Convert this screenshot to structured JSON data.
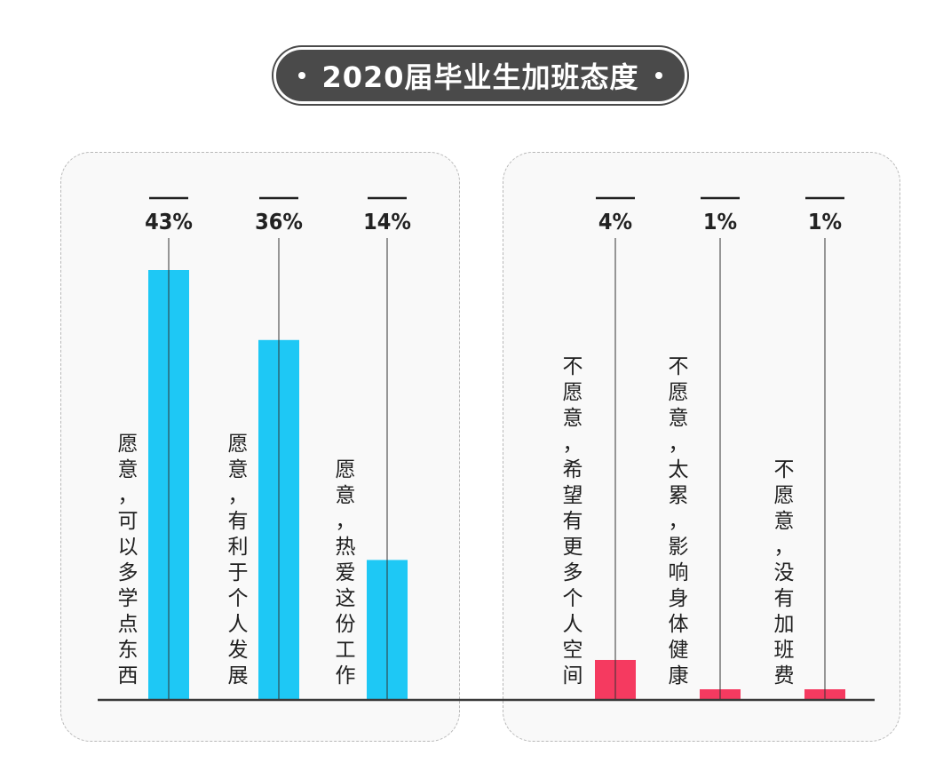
{
  "title": "2020届毕业生加班态度",
  "chart_data": {
    "type": "bar",
    "categories": [
      "愿意，可以多学点东西",
      "愿意，有利于个人发展",
      "愿意，热爱这份工作",
      "不愿意，希望有更多个人空间",
      "不愿意，太累，影响身体健康",
      "不愿意，没有加班费"
    ],
    "values": [
      43,
      36,
      14,
      4,
      1,
      1
    ],
    "value_labels": [
      "43%",
      "36%",
      "14%",
      "4%",
      "1%",
      "1%"
    ],
    "groups": [
      {
        "name": "",
        "indices": [
          0,
          1,
          2
        ],
        "color": "#1ec8f5"
      },
      {
        "name": "",
        "indices": [
          3,
          4,
          5
        ],
        "color": "#f53a60"
      }
    ],
    "ylim": [
      0,
      43
    ],
    "grid": false,
    "xlabel": "",
    "ylabel": ""
  },
  "colors": {
    "willing": "#1ec8f5",
    "unwilling": "#f53a60",
    "title_pill": "#4a4a4a"
  }
}
